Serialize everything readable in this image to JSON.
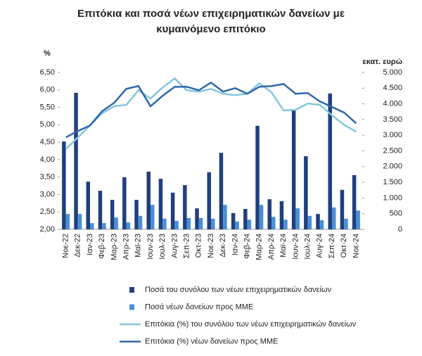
{
  "chart_data": {
    "type": "bar",
    "title": [
      "Επιτόκια και ποσά νέων επιχειρηματικών δανείων με",
      "κυμαινόμενο επιτόκιο"
    ],
    "y_label": "%",
    "y2_label": "εκατ. ευρώ",
    "categories": [
      "Νοε-22",
      "Δεκ-22",
      "Ιαν-23",
      "Φεβ-23",
      "Μαρ-23",
      "Απρ-23",
      "Μαϊ-23",
      "Ιουν-23",
      "Ιουλ-23",
      "Αυγ-23",
      "Σεπ-23",
      "Οκτ-23",
      "Νοε-23",
      "Δεκ-23",
      "Ιαν-24",
      "Φεβ-24",
      "Μαρ-24",
      "Απρ-24",
      "Μαϊ-24",
      "Ιουν-24",
      "Ιουλ-24",
      "Αυγ-24",
      "Σεπ-24",
      "Οκτ-24",
      "Νοε-24"
    ],
    "series": [
      {
        "name": "Ποσά του συνόλου των νέων επιχειρηματικών δανείων",
        "type": "bar",
        "axis": "y2",
        "color": "#213f7c",
        "values": [
          2800,
          4350,
          1520,
          1230,
          940,
          1660,
          940,
          1840,
          1610,
          1170,
          1410,
          670,
          1820,
          2440,
          520,
          650,
          3300,
          960,
          900,
          3790,
          2330,
          490,
          4330,
          1260,
          1730
        ]
      },
      {
        "name": "Ποσά νέων δανείων προς ΜΜΕ",
        "type": "bar",
        "axis": "y2",
        "color": "#4a8fd6",
        "values": [
          490,
          490,
          200,
          200,
          380,
          220,
          430,
          780,
          340,
          270,
          360,
          360,
          340,
          780,
          250,
          310,
          780,
          400,
          310,
          670,
          430,
          290,
          700,
          340,
          600
        ]
      },
      {
        "name": "Επιτόκια (%) του συνόλου των νέων επιχειρηματικών δανείων",
        "type": "line",
        "axis": "y",
        "color": "#84c6dc",
        "values": [
          4.3,
          4.64,
          4.98,
          5.33,
          5.53,
          5.57,
          5.99,
          5.75,
          6.07,
          6.33,
          5.99,
          5.95,
          6.03,
          5.89,
          5.85,
          5.89,
          6.19,
          5.93,
          5.41,
          5.43,
          5.61,
          5.57,
          5.27,
          5.0,
          4.8
        ]
      },
      {
        "name": "Επιτόκια (%) νέων δανείων προς ΜΜΕ",
        "type": "line",
        "axis": "y",
        "color": "#2f67ab",
        "values": [
          4.64,
          4.82,
          4.98,
          5.39,
          5.63,
          6.03,
          6.11,
          5.53,
          5.83,
          6.09,
          6.09,
          5.99,
          6.21,
          5.95,
          6.05,
          5.89,
          6.09,
          6.11,
          6.17,
          5.89,
          5.91,
          5.67,
          5.51,
          5.35,
          5.04
        ]
      }
    ],
    "ylim": [
      2,
      6.5
    ],
    "yticks": [
      {
        "value": 2,
        "label": "2,00"
      },
      {
        "value": 2.5,
        "label": "2,50"
      },
      {
        "value": 3,
        "label": "3,00"
      },
      {
        "value": 3.5,
        "label": "3,50"
      },
      {
        "value": 4,
        "label": "4,00"
      },
      {
        "value": 4.5,
        "label": "4,50"
      },
      {
        "value": 5,
        "label": "5,00"
      },
      {
        "value": 5.5,
        "label": "5,50"
      },
      {
        "value": 6,
        "label": "6,00"
      },
      {
        "value": 6.5,
        "label": "6,50"
      }
    ],
    "y2lim": [
      0,
      5000
    ],
    "y2ticks": [
      0,
      500,
      {
        "value": 1000,
        "label": "1.000"
      },
      {
        "value": 1500,
        "label": "1.500"
      },
      {
        "value": 2000,
        "label": "2.000"
      },
      {
        "value": 2500,
        "label": "2.500"
      },
      {
        "value": 3000,
        "label": "3.000"
      },
      {
        "value": 3500,
        "label": "3.500"
      },
      {
        "value": 4000,
        "label": "4.000"
      },
      {
        "value": 4500,
        "label": "4.500"
      },
      {
        "value": 5000,
        "label": "5.000"
      }
    ],
    "grid": false,
    "legend": "bottom"
  }
}
